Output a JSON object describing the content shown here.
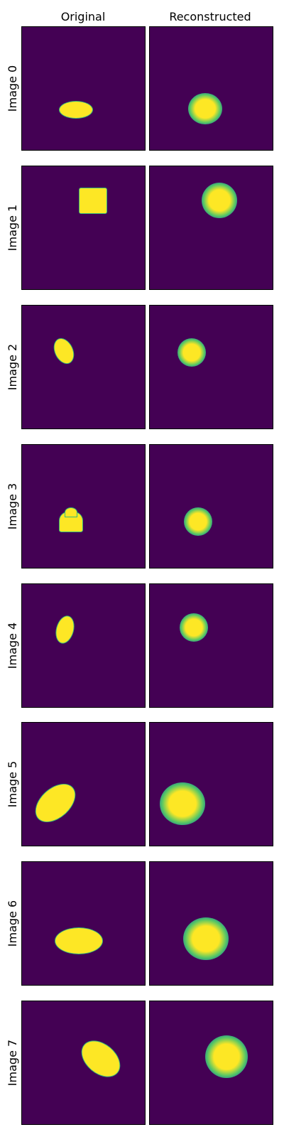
{
  "columns": [
    "Original",
    "Reconstructed"
  ],
  "rows": [
    {
      "label": "Image 0"
    },
    {
      "label": "Image 1"
    },
    {
      "label": "Image 2"
    },
    {
      "label": "Image 3"
    },
    {
      "label": "Image 4"
    },
    {
      "label": "Image 5"
    },
    {
      "label": "Image 6"
    },
    {
      "label": "Image 7"
    }
  ],
  "colors": {
    "background": "#440154",
    "foreground": "#fde725",
    "edge": "#35b779"
  }
}
